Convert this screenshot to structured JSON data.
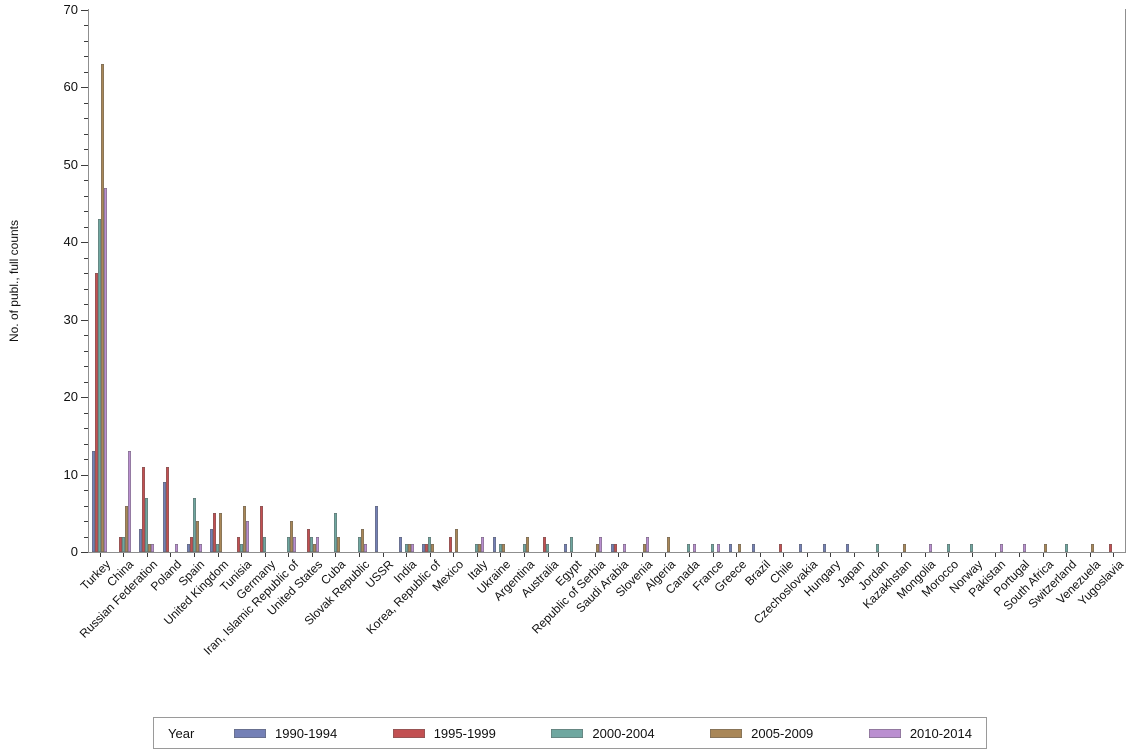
{
  "chart_data": {
    "type": "bar",
    "title": "",
    "xlabel": "",
    "ylabel": "No. of publ., full counts",
    "ylim": [
      0,
      70
    ],
    "y_major_step": 10,
    "y_minor_step": 2,
    "grid": false,
    "legend_position": "bottom",
    "legend_title": "Year",
    "categories": [
      "Turkey",
      "China",
      "Russian Federation",
      "Poland",
      "Spain",
      "United Kingdom",
      "Tunisia",
      "Germany",
      "Iran, Islamic Republic of",
      "United States",
      "Cuba",
      "Slovak Republic",
      "USSR",
      "India",
      "Korea, Republic of",
      "Mexico",
      "Italy",
      "Ukraine",
      "Argentina",
      "Australia",
      "Egypt",
      "Republic of Serbia",
      "Saudi Arabia",
      "Slovenia",
      "Algeria",
      "Canada",
      "France",
      "Greece",
      "Brazil",
      "Chile",
      "Czechoslovakia",
      "Hungary",
      "Japan",
      "Jordan",
      "Kazakhstan",
      "Mongolia",
      "Morocco",
      "Norway",
      "Pakistan",
      "Portugal",
      "South Africa",
      "Switzerland",
      "Venezuela",
      "Yugoslavia"
    ],
    "series": [
      {
        "name": "1990-1994",
        "color": "#7480b6",
        "values": [
          13,
          0,
          3,
          9,
          1,
          3,
          0,
          0,
          0,
          0,
          0,
          0,
          6,
          2,
          1,
          0,
          0,
          2,
          0,
          0,
          1,
          0,
          1,
          0,
          0,
          0,
          0,
          1,
          1,
          0,
          1,
          1,
          1,
          0,
          0,
          0,
          0,
          0,
          0,
          0,
          0,
          0,
          0,
          0
        ]
      },
      {
        "name": "1995-1999",
        "color": "#c25052",
        "values": [
          36,
          2,
          11,
          11,
          2,
          5,
          2,
          6,
          0,
          3,
          0,
          0,
          0,
          0,
          1,
          2,
          0,
          0,
          0,
          2,
          0,
          0,
          1,
          0,
          0,
          0,
          0,
          0,
          0,
          1,
          0,
          0,
          0,
          0,
          0,
          0,
          0,
          0,
          0,
          0,
          0,
          0,
          0,
          1
        ]
      },
      {
        "name": "2000-2004",
        "color": "#6fa7a0",
        "values": [
          43,
          2,
          7,
          0,
          7,
          1,
          1,
          2,
          2,
          2,
          5,
          2,
          0,
          1,
          2,
          0,
          1,
          1,
          1,
          1,
          2,
          0,
          0,
          0,
          0,
          1,
          1,
          0,
          0,
          0,
          0,
          0,
          0,
          1,
          0,
          0,
          1,
          1,
          0,
          0,
          0,
          1,
          0,
          0
        ]
      },
      {
        "name": "2005-2009",
        "color": "#a98758",
        "values": [
          63,
          6,
          1,
          0,
          4,
          5,
          6,
          0,
          4,
          1,
          2,
          3,
          0,
          1,
          1,
          3,
          1,
          1,
          2,
          0,
          0,
          1,
          0,
          1,
          2,
          0,
          0,
          1,
          0,
          0,
          0,
          0,
          0,
          0,
          1,
          0,
          0,
          0,
          0,
          0,
          1,
          0,
          1,
          0
        ]
      },
      {
        "name": "2010-2014",
        "color": "#ba8fd0",
        "values": [
          47,
          13,
          1,
          1,
          1,
          0,
          4,
          0,
          2,
          2,
          0,
          1,
          0,
          1,
          0,
          0,
          2,
          0,
          0,
          0,
          0,
          2,
          1,
          2,
          0,
          1,
          1,
          0,
          0,
          0,
          0,
          0,
          0,
          0,
          0,
          1,
          0,
          0,
          1,
          1,
          0,
          0,
          0,
          0
        ]
      }
    ]
  }
}
